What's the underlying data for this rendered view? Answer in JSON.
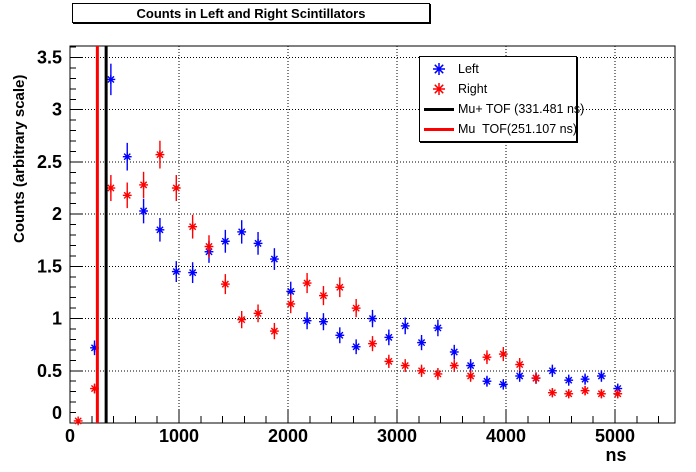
{
  "title": "Counts in Left and Right Scintillators",
  "legend": {
    "items": [
      {
        "label": "Left",
        "type": "marker",
        "color": "#0000ff"
      },
      {
        "label": "Right",
        "type": "marker",
        "color": "#ff0000"
      },
      {
        "label": "Mu+ TOF (331.481 ns)",
        "type": "line",
        "color": "#000000"
      },
      {
        "label": "Mu  TOF(251.107 ns)",
        "type": "line",
        "color": "#ff0000"
      }
    ]
  },
  "chart_data": {
    "type": "scatter",
    "title": "Counts in Left and Right Scintillators",
    "xlabel": "ns",
    "ylabel": "Counts (arbitrary scale)",
    "xlim": [
      0,
      5550
    ],
    "ylim": [
      0,
      3.61
    ],
    "grid": true,
    "marker": "asterisk",
    "x_ticks": {
      "values": [
        0,
        1000,
        2000,
        3000,
        4000,
        5000
      ],
      "labels": [
        "0",
        "1000",
        "2000",
        "3000",
        "4000",
        "5000"
      ],
      "minor_step": 200
    },
    "y_ticks": {
      "values": [
        0,
        0.5,
        1,
        1.5,
        2,
        2.5,
        3,
        3.5
      ],
      "labels": [
        "0",
        "0.5",
        "1",
        "1.5",
        "2",
        "2.5",
        "3",
        "3.5"
      ],
      "minor_step": 0.1
    },
    "x": [
      75,
      225,
      375,
      525,
      675,
      825,
      975,
      1125,
      1275,
      1425,
      1575,
      1725,
      1875,
      2025,
      2175,
      2325,
      2475,
      2625,
      2775,
      2925,
      3075,
      3225,
      3375,
      3525,
      3675,
      3825,
      3975,
      4125,
      4275,
      4425,
      4575,
      4725,
      4875,
      5025
    ],
    "series": [
      {
        "name": "Left",
        "color": "#0000ff",
        "values": [
          null,
          0.72,
          3.29,
          2.55,
          2.03,
          1.85,
          1.45,
          1.44,
          1.64,
          1.74,
          1.83,
          1.72,
          1.57,
          1.26,
          0.98,
          0.97,
          0.84,
          0.73,
          1.0,
          0.82,
          0.93,
          0.77,
          0.91,
          0.68,
          0.55,
          0.4,
          0.37,
          0.45,
          0.43,
          0.5,
          0.41,
          0.42,
          0.45,
          0.33
        ]
      },
      {
        "name": "Right",
        "color": "#ff0000",
        "values": [
          0.02,
          0.33,
          2.25,
          2.18,
          2.28,
          2.57,
          2.25,
          1.88,
          1.69,
          1.33,
          0.99,
          1.05,
          0.88,
          1.14,
          1.34,
          1.22,
          1.3,
          1.1,
          0.76,
          0.59,
          0.55,
          0.5,
          0.47,
          0.55,
          0.45,
          0.63,
          0.66,
          0.56,
          0.43,
          0.29,
          0.28,
          0.31,
          0.28,
          0.28
        ]
      }
    ],
    "error_model": "err = coefficient * sqrt(value)",
    "error_coefficient": 0.083,
    "vlines": [
      {
        "label": "Mu+ TOF (331.481 ns)",
        "x": 331.481,
        "color": "#000000",
        "width": 3
      },
      {
        "label": "Mu  TOF(251.107 ns)",
        "x": 251.107,
        "color": "#ff0000",
        "width": 3
      }
    ]
  }
}
